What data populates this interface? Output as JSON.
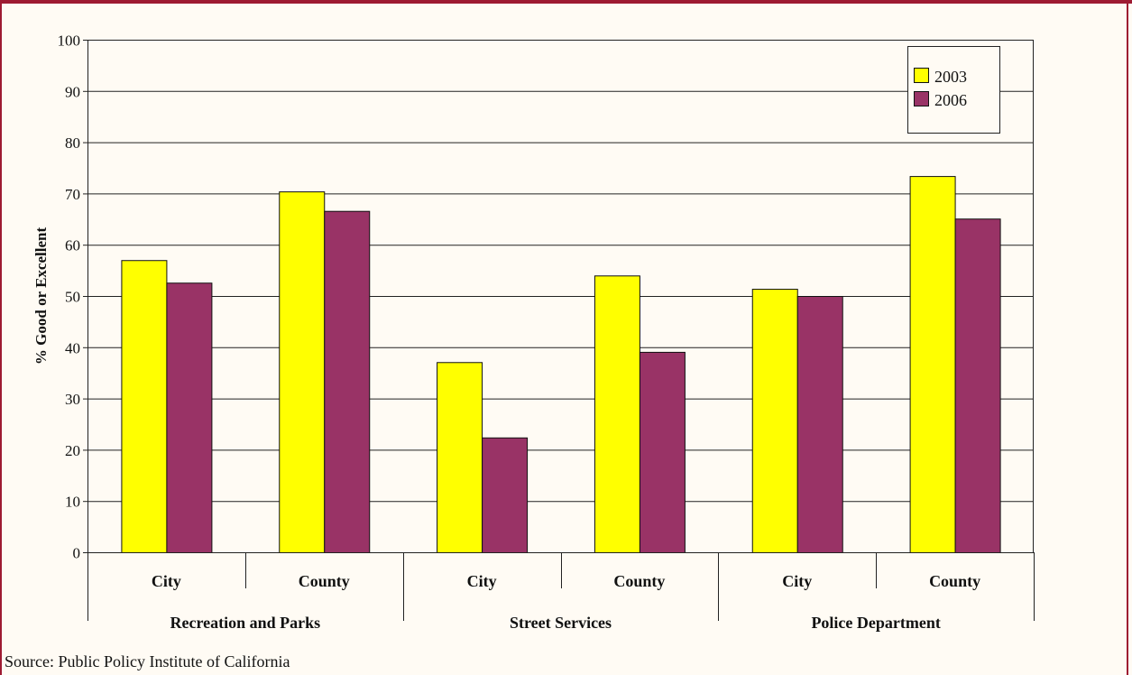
{
  "chart_data": {
    "type": "bar",
    "ylabel": "% Good or Excellent",
    "ylim": [
      0,
      100
    ],
    "yticks": [
      0,
      10,
      20,
      30,
      40,
      50,
      60,
      70,
      80,
      90,
      100
    ],
    "grid": true,
    "legend_position": "top-right",
    "groups": [
      {
        "label": "Recreation and Parks",
        "categories": [
          "City",
          "County"
        ]
      },
      {
        "label": "Street Services",
        "categories": [
          "City",
          "County"
        ]
      },
      {
        "label": "Police Department",
        "categories": [
          "City",
          "County"
        ]
      }
    ],
    "categories": [
      "City",
      "County",
      "City",
      "County",
      "City",
      "County"
    ],
    "series": [
      {
        "name": "2003",
        "color": "#ffff00",
        "values": [
          57,
          70.4,
          37.1,
          54,
          51.4,
          73.4
        ]
      },
      {
        "name": "2006",
        "color": "#993366",
        "values": [
          52.6,
          66.6,
          22.4,
          39.1,
          50,
          65.1
        ]
      }
    ]
  },
  "source": "Source: Public Policy Institute of California"
}
